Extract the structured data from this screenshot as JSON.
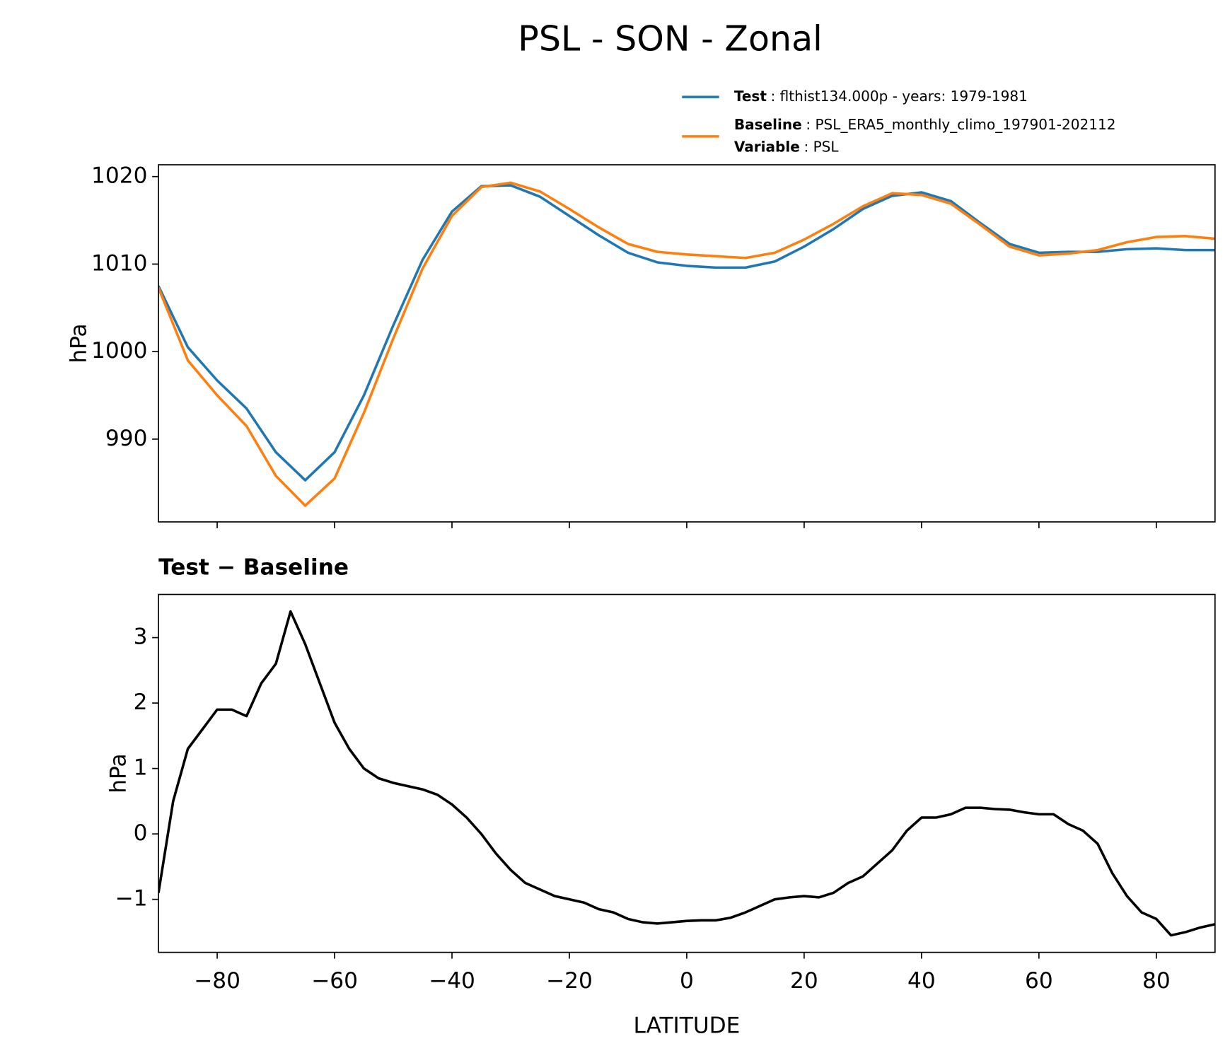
{
  "title": "PSL - SON - Zonal",
  "chart_data": [
    {
      "type": "line",
      "ylabel": "hPa",
      "x": [
        -90,
        -85,
        -80,
        -75,
        -70,
        -65,
        -60,
        -55,
        -50,
        -45,
        -40,
        -35,
        -30,
        -25,
        -20,
        -15,
        -10,
        -5,
        0,
        5,
        10,
        15,
        20,
        25,
        30,
        35,
        40,
        45,
        50,
        55,
        60,
        65,
        70,
        75,
        80,
        85,
        90
      ],
      "xlim": [
        -90,
        90
      ],
      "xticks": [
        -80,
        -60,
        -40,
        -20,
        0,
        20,
        40,
        60,
        80
      ],
      "ylim": [
        980.54,
        1021.35
      ],
      "yticks": [
        990,
        1000,
        1010,
        1020
      ],
      "series": [
        {
          "name": "Test",
          "description": ": flthist134.000p - years: 1979-1981",
          "color": "#1f77b4",
          "values": [
            1007.5,
            1000.5,
            996.7,
            993.5,
            988.5,
            985.3,
            988.5,
            995,
            1003,
            1010.5,
            1016,
            1018.9,
            1019.0,
            1017.7,
            1015.5,
            1013.3,
            1011.3,
            1010.2,
            1009.8,
            1009.6,
            1009.6,
            1010.3,
            1012,
            1014,
            1016.3,
            1017.8,
            1018.2,
            1017.2,
            1014.7,
            1012.3,
            1011.3,
            1011.4,
            1011.4,
            1011.7,
            1011.8,
            1011.6,
            1011.6
          ]
        },
        {
          "name": "Baseline",
          "description": ": PSL_ERA5_monthly_climo_197901-202112",
          "variable_label": "Variable",
          "variable": ": PSL",
          "color": "#ff7f0e",
          "values": [
            1007.3,
            999,
            995,
            991.5,
            985.8,
            982.4,
            985.5,
            993,
            1001.5,
            1009.5,
            1015.5,
            1018.8,
            1019.3,
            1018.3,
            1016.3,
            1014.2,
            1012.3,
            1011.4,
            1011.1,
            1010.9,
            1010.7,
            1011.3,
            1012.8,
            1014.6,
            1016.6,
            1018.1,
            1017.9,
            1016.9,
            1014.5,
            1012.0,
            1011.0,
            1011.2,
            1011.6,
            1012.5,
            1013.1,
            1013.2,
            1012.9
          ]
        }
      ]
    },
    {
      "type": "line",
      "title": "Test − Baseline",
      "ylabel": "hPa",
      "xlabel": "LATITUDE",
      "x": [
        -90,
        -87.5,
        -85,
        -82.5,
        -80,
        -77.5,
        -75,
        -72.5,
        -70,
        -67.5,
        -65,
        -62.5,
        -60,
        -57.5,
        -55,
        -52.5,
        -50,
        -47.5,
        -45,
        -42.5,
        -40,
        -37.5,
        -35,
        -32.5,
        -30,
        -27.5,
        -25,
        -22.5,
        -20,
        -17.5,
        -15,
        -12.5,
        -10,
        -7.5,
        -5,
        -2.5,
        0,
        2.5,
        5,
        7.5,
        10,
        12.5,
        15,
        17.5,
        20,
        22.5,
        25,
        27.5,
        30,
        32.5,
        35,
        37.5,
        40,
        42.5,
        45,
        47.5,
        50,
        52.5,
        55,
        57.5,
        60,
        62.5,
        65,
        67.5,
        70,
        72.5,
        75,
        77.5,
        80,
        82.5,
        85,
        87.5,
        90
      ],
      "xlim": [
        -90,
        90
      ],
      "xticks": [
        {
          "value": -80,
          "label": "−80"
        },
        {
          "value": -60,
          "label": "−60"
        },
        {
          "value": -40,
          "label": "−40"
        },
        {
          "value": -20,
          "label": "−20"
        },
        0,
        20,
        40,
        60,
        80
      ],
      "ylim": [
        -1.81,
        3.66
      ],
      "yticks": [
        {
          "value": -1,
          "label": "−1"
        },
        0,
        1,
        2,
        3
      ],
      "series": [
        {
          "color": "#000000",
          "values": [
            -0.9,
            0.5,
            1.3,
            1.6,
            1.9,
            1.9,
            1.8,
            2.3,
            2.6,
            3.4,
            2.9,
            2.3,
            1.7,
            1.3,
            1.0,
            0.85,
            0.78,
            0.73,
            0.68,
            0.6,
            0.45,
            0.25,
            0.0,
            -0.3,
            -0.55,
            -0.75,
            -0.85,
            -0.95,
            -1.0,
            -1.05,
            -1.15,
            -1.2,
            -1.3,
            -1.35,
            -1.37,
            -1.35,
            -1.33,
            -1.32,
            -1.32,
            -1.28,
            -1.2,
            -1.1,
            -1.0,
            -0.97,
            -0.95,
            -0.97,
            -0.9,
            -0.75,
            -0.65,
            -0.45,
            -0.25,
            0.05,
            0.25,
            0.25,
            0.3,
            0.4,
            0.4,
            0.38,
            0.37,
            0.33,
            0.3,
            0.3,
            0.15,
            0.05,
            -0.15,
            -0.6,
            -0.95,
            -1.2,
            -1.3,
            -1.55,
            -1.5,
            -1.43,
            -1.38
          ]
        }
      ]
    }
  ]
}
